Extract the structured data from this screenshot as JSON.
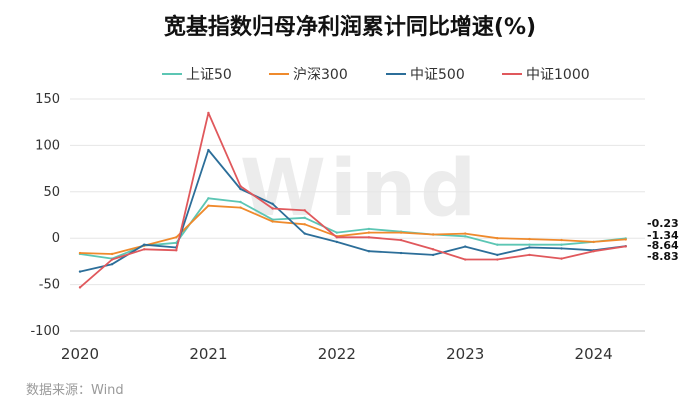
{
  "title": "宽基指数归母净利润累计同比增速(%)",
  "source": "数据来源：Wind",
  "watermark": "Wind",
  "chart_data": {
    "type": "line",
    "title": "宽基指数归母净利润累计同比增速(%)",
    "ylim": [
      -100,
      150
    ],
    "yticks": [
      150,
      100,
      50,
      0,
      -50,
      -100
    ],
    "ytick_labels": [
      "150",
      "100",
      "50",
      "0",
      "-50",
      "-100"
    ],
    "xlim": [
      2020,
      2024.4
    ],
    "xticks": [
      2020,
      2021,
      2022,
      2023,
      2024
    ],
    "xtick_labels": [
      "2020",
      "2021",
      "2022",
      "2023",
      "2024"
    ],
    "grid": "horizontal",
    "legend_position": "top",
    "x": [
      2020.0,
      2020.25,
      2020.5,
      2020.75,
      2021.0,
      2021.25,
      2021.5,
      2021.75,
      2022.0,
      2022.25,
      2022.5,
      2022.75,
      2023.0,
      2023.25,
      2023.5,
      2023.75,
      2024.0,
      2024.25
    ],
    "series": [
      {
        "name": "上证50",
        "color": "#5cc6b4",
        "values": [
          -17,
          -22,
          -8,
          -5,
          43,
          39,
          20,
          22,
          6,
          10,
          7,
          4,
          2,
          -7,
          -7,
          -7,
          -4,
          -0.23
        ]
      },
      {
        "name": "沪深300",
        "color": "#ef8a2c",
        "values": [
          -16,
          -17,
          -8,
          1,
          35,
          33,
          18,
          15,
          2,
          6,
          6,
          4,
          5,
          0,
          -1,
          -2,
          -4,
          -1.34
        ]
      },
      {
        "name": "中证500",
        "color": "#2c6e99",
        "values": [
          -36,
          -28,
          -7,
          -10,
          95,
          53,
          37,
          5,
          -4,
          -14,
          -16,
          -18,
          -9,
          -18,
          -10,
          -11,
          -13,
          -8.64
        ]
      },
      {
        "name": "中证1000",
        "color": "#e0585c",
        "values": [
          -53,
          -23,
          -12,
          -13,
          135,
          56,
          32,
          30,
          1,
          1,
          -2,
          -12,
          -23,
          -23,
          -18,
          -22,
          -14,
          -8.83
        ]
      }
    ],
    "end_labels": [
      "-0.23",
      "-1.34",
      "-8.64",
      "-8.83"
    ]
  }
}
